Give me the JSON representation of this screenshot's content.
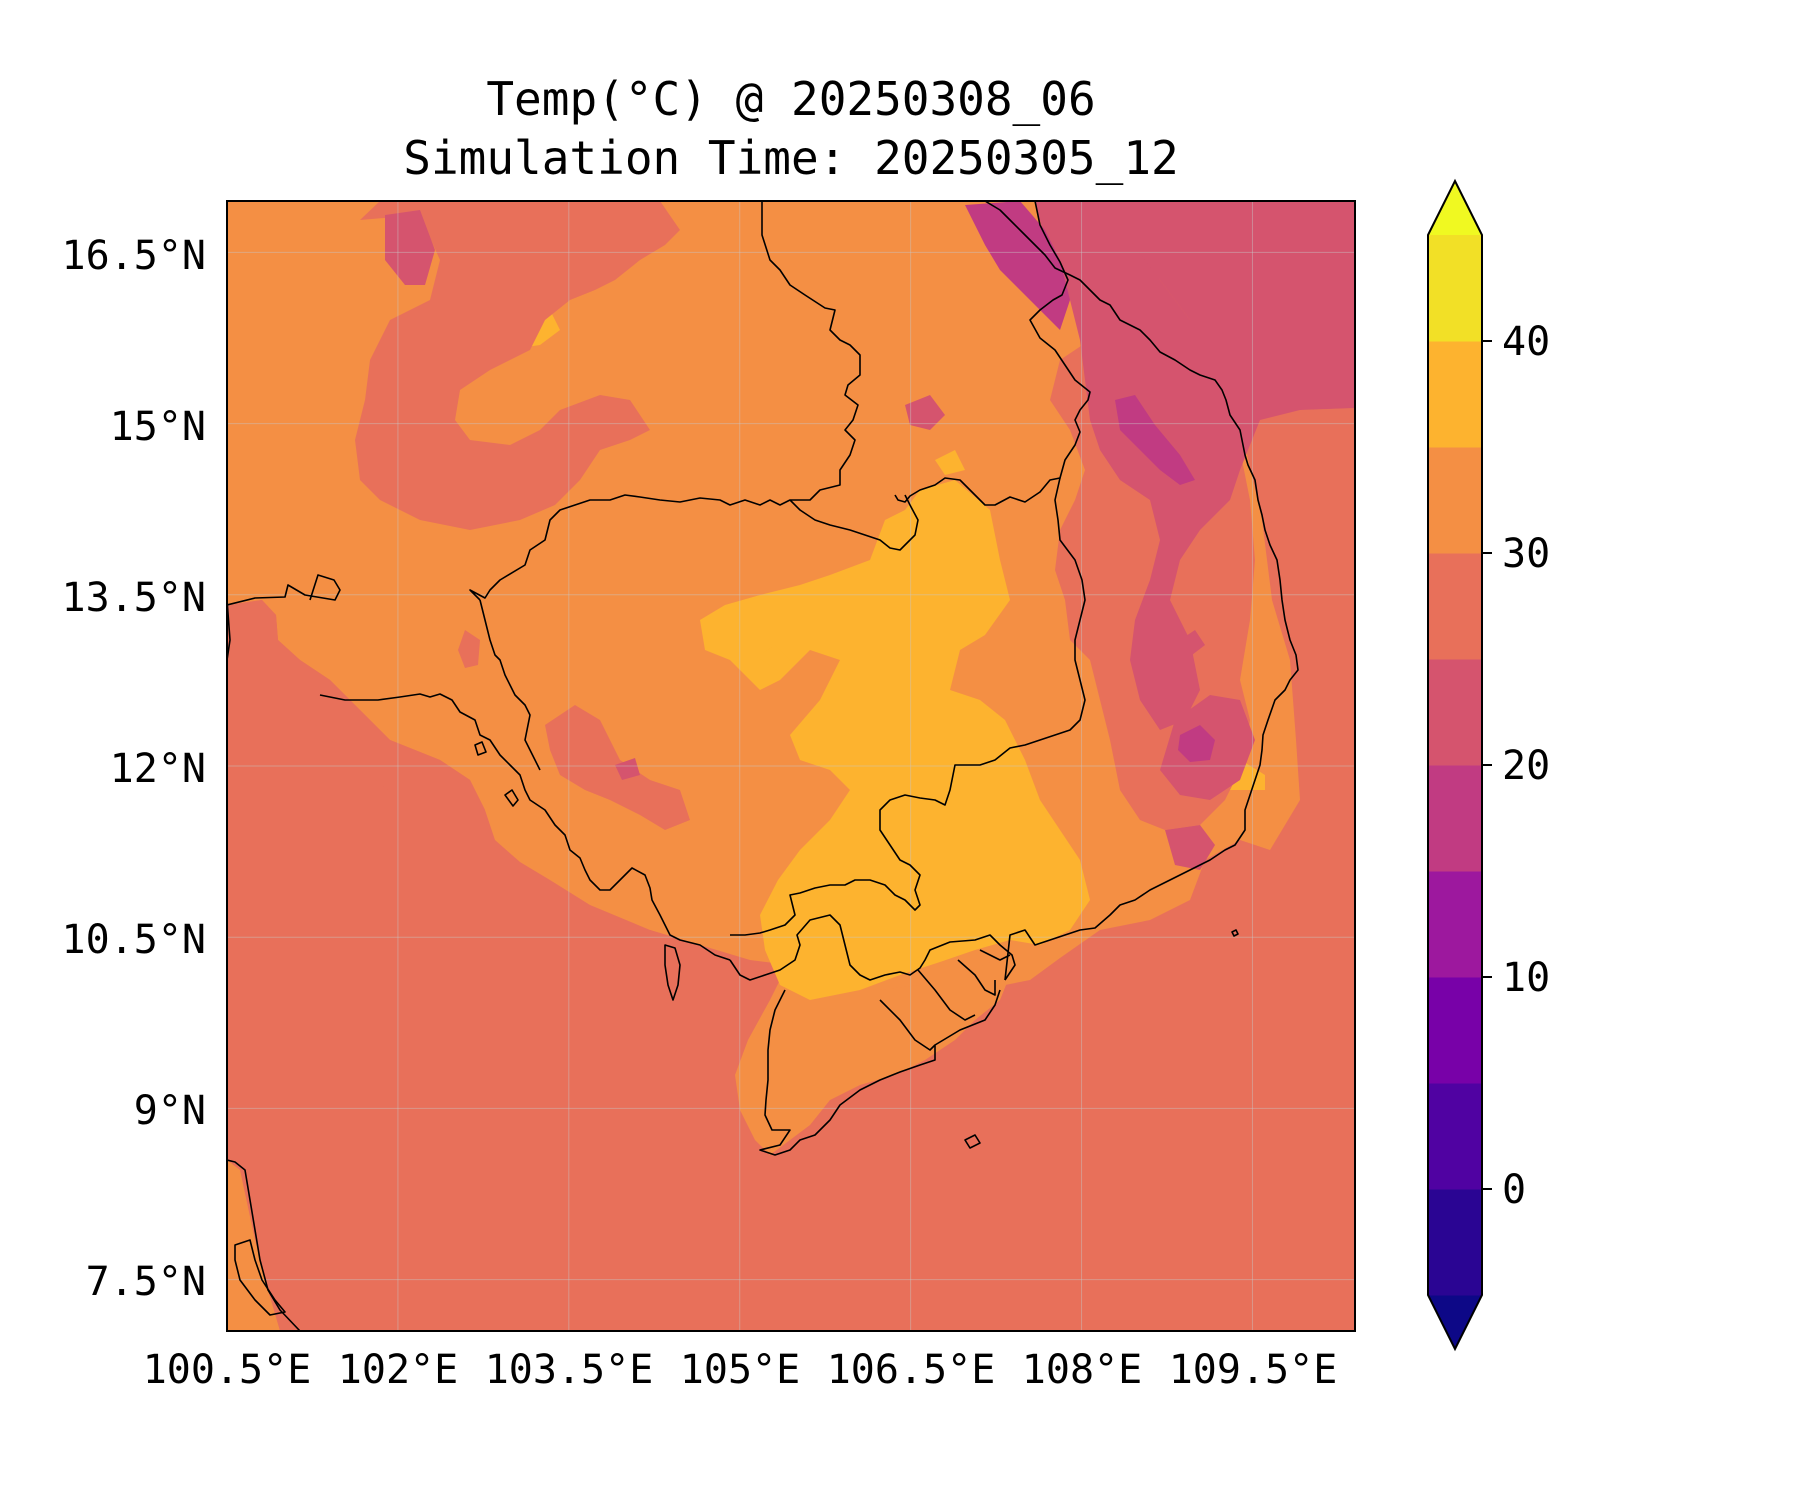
{
  "title": {
    "line1": "Temp(°C) @ 20250308_06",
    "line2": "Simulation Time: 20250305_12"
  },
  "map": {
    "lon_range": [
      100.5,
      110.4
    ],
    "lat_range": [
      7.05,
      16.95
    ],
    "x_ticks": [
      "100.5°E",
      "102°E",
      "103.5°E",
      "105°E",
      "106.5°E",
      "108°E",
      "109.5°E"
    ],
    "y_ticks": [
      "16.5°N",
      "15°N",
      "13.5°N",
      "12°N",
      "10.5°N",
      "9°N",
      "7.5°N"
    ],
    "gridlines": true,
    "coastlines": true,
    "country_borders": true,
    "field": "Temp(°C)",
    "sea_level_class": "25-30",
    "land_dominant_class": "30-35",
    "hot_core_class": "35-40",
    "cool_highlands_class": "15-25"
  },
  "colorbar": {
    "colormap": "plasma",
    "extend": "both",
    "levels": [
      -5,
      0,
      5,
      10,
      15,
      20,
      25,
      30,
      35,
      40,
      45
    ],
    "tick_labels": [
      "0",
      "10",
      "20",
      "30",
      "40"
    ],
    "under_color": "#0d0887",
    "over_color": "#f0f921",
    "colors": [
      "#2a0593",
      "#5002a2",
      "#7801a8",
      "#9d189e",
      "#c13b82",
      "#d5546e",
      "#e8705a",
      "#f48f44",
      "#fdb32f",
      "#f2e026"
    ]
  }
}
